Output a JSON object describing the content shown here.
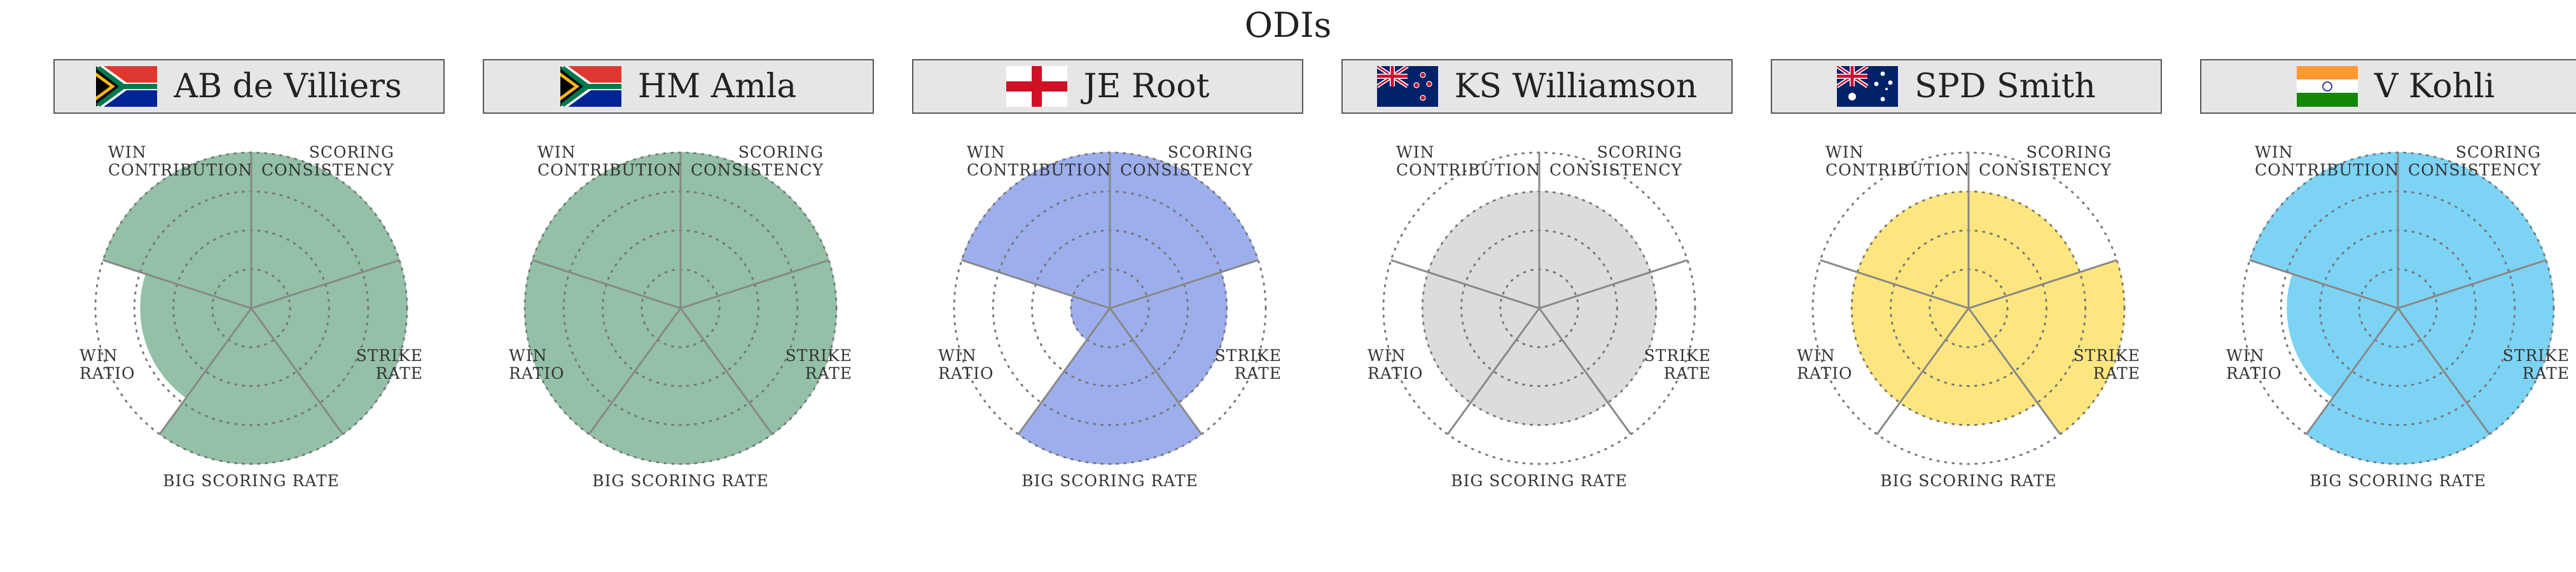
{
  "title": "ODIs",
  "colors": {
    "south_africa": "#93c0a6",
    "england": "#9daeec",
    "new_zealand": "#dcdcdc",
    "australia": "#fde67f",
    "india": "#7dd3f4",
    "spoke": "#888888",
    "grid": "#777777"
  },
  "axes": [
    {
      "id": "scoring",
      "lines": [
        "SCORING",
        "CONSISTENCY"
      ]
    },
    {
      "id": "strike",
      "lines": [
        "STRIKE",
        "RATE"
      ]
    },
    {
      "id": "big",
      "lines": [
        "BIG SCORING RATE"
      ]
    },
    {
      "id": "winratio",
      "lines": [
        "WIN",
        "RATIO"
      ]
    },
    {
      "id": "wincontrib",
      "lines": [
        "WIN",
        "CONTRIBUTION"
      ]
    }
  ],
  "chart_data": {
    "type": "radar",
    "title": "ODIs",
    "axes": [
      "SCORING CONSISTENCY",
      "STRIKE RATE",
      "BIG SCORING RATE",
      "WIN RATIO",
      "WIN CONTRIBUTION"
    ],
    "rmax": 1.0,
    "grid_levels": [
      0.25,
      0.5,
      0.75,
      1.0
    ],
    "grid": true,
    "series": [
      {
        "name": "AB de Villiers",
        "flag": "south-africa",
        "color": "#93c0a6",
        "values": [
          1.0,
          1.0,
          1.0,
          0.71,
          1.0
        ]
      },
      {
        "name": "HM Amla",
        "flag": "south-africa",
        "color": "#93c0a6",
        "values": [
          1.0,
          1.0,
          1.0,
          1.0,
          1.0
        ]
      },
      {
        "name": "JE Root",
        "flag": "england",
        "color": "#9daeec",
        "values": [
          1.0,
          0.75,
          1.0,
          0.25,
          1.0
        ]
      },
      {
        "name": "KS Williamson",
        "flag": "new-zealand",
        "color": "#dcdcdc",
        "values": [
          0.75,
          0.75,
          0.75,
          0.75,
          0.75
        ]
      },
      {
        "name": "SPD Smith",
        "flag": "australia",
        "color": "#fde67f",
        "values": [
          0.75,
          1.0,
          0.75,
          0.75,
          0.75
        ]
      },
      {
        "name": "V Kohli",
        "flag": "india",
        "color": "#7dd3f4",
        "values": [
          1.0,
          1.0,
          1.0,
          0.71,
          1.0
        ]
      }
    ]
  }
}
